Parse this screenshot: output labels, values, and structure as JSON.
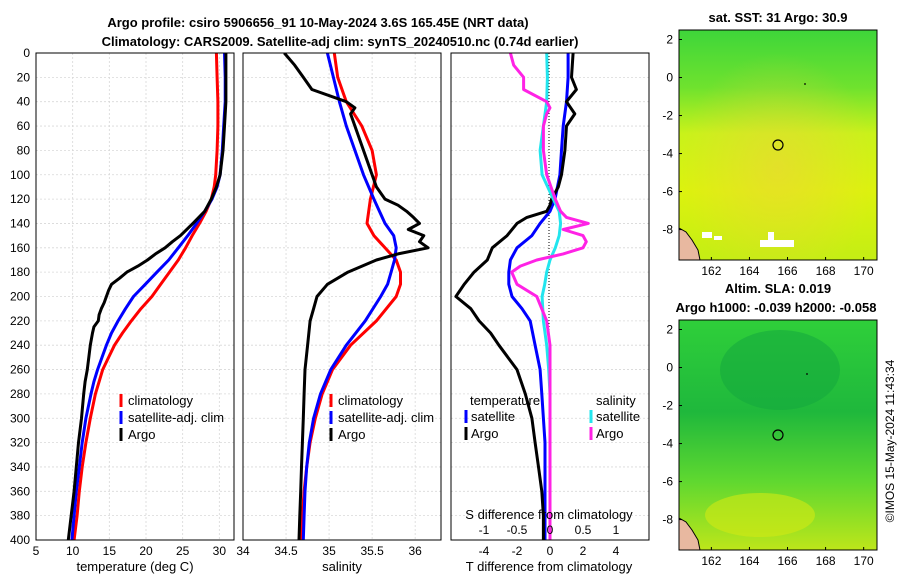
{
  "header": {
    "line1": "Argo profile: csiro 5906656_91 10-May-2024 3.6S 165.45E (NRT data)",
    "line2": "Climatology: CARS2009. Satellite-adj clim: synTS_20240510.nc (0.74d earlier)"
  },
  "depth_axis": {
    "ticks": [
      0,
      20,
      40,
      60,
      80,
      100,
      120,
      140,
      160,
      180,
      200,
      220,
      240,
      260,
      280,
      300,
      320,
      340,
      360,
      380,
      400
    ]
  },
  "colors": {
    "climatology": "#ff0000",
    "satellite": "#0000ff",
    "argo": "#000000",
    "sal_sat": "#22e5ee",
    "sal_argo": "#ff22e5"
  },
  "chart_data": [
    {
      "type": "line",
      "name": "temperature-profile",
      "xlabel": "temperature (deg C)",
      "ylabel": "depth",
      "xlim": [
        5,
        32
      ],
      "ylim": [
        0,
        400
      ],
      "xticks": [
        5,
        10,
        15,
        20,
        25,
        30
      ],
      "legend": [
        "climatology",
        "satellite-adj. clim",
        "Argo"
      ],
      "series": [
        {
          "name": "climatology",
          "depth": [
            0,
            20,
            40,
            60,
            80,
            100,
            110,
            120,
            130,
            140,
            150,
            160,
            170,
            180,
            190,
            200,
            210,
            220,
            230,
            240,
            250,
            260,
            270,
            280,
            300,
            320,
            340,
            360,
            380,
            400
          ],
          "values": [
            29.6,
            29.7,
            29.8,
            29.8,
            29.7,
            29.5,
            29.3,
            28.9,
            28.2,
            27.3,
            26.3,
            25.4,
            24.4,
            23.2,
            22.0,
            20.8,
            19.3,
            18.0,
            16.8,
            15.7,
            14.9,
            14.1,
            13.6,
            13.1,
            12.4,
            11.8,
            11.3,
            10.9,
            10.6,
            10.2
          ]
        },
        {
          "name": "satellite-adj. clim",
          "depth": [
            0,
            20,
            40,
            60,
            80,
            100,
            110,
            120,
            130,
            140,
            150,
            160,
            170,
            180,
            190,
            200,
            210,
            220,
            230,
            240,
            250,
            260,
            270,
            280,
            300,
            320,
            340,
            360,
            380,
            400
          ],
          "values": [
            30.7,
            30.8,
            30.8,
            30.6,
            30.4,
            30.1,
            29.7,
            29.0,
            28.0,
            26.9,
            25.7,
            24.4,
            23.1,
            21.5,
            19.9,
            18.3,
            17.2,
            16.2,
            15.3,
            14.6,
            14.0,
            13.4,
            12.9,
            12.5,
            11.8,
            11.3,
            10.9,
            10.5,
            10.2,
            9.9
          ]
        },
        {
          "name": "Argo",
          "depth": [
            0,
            20,
            40,
            60,
            80,
            100,
            110,
            120,
            130,
            140,
            150,
            155,
            160,
            165,
            170,
            175,
            180,
            185,
            190,
            195,
            200,
            205,
            210,
            215,
            220,
            225,
            230,
            240,
            250,
            260,
            270,
            280,
            300,
            320,
            340,
            360,
            380,
            400
          ],
          "values": [
            30.9,
            30.9,
            30.9,
            30.7,
            30.5,
            30.1,
            29.6,
            28.9,
            28.0,
            26.4,
            24.7,
            23.6,
            22.6,
            21.3,
            20.2,
            18.9,
            17.4,
            16.4,
            15.3,
            14.9,
            14.6,
            14.3,
            13.9,
            13.6,
            13.5,
            12.9,
            12.7,
            12.4,
            12.2,
            12.0,
            11.7,
            11.5,
            11.2,
            10.8,
            10.5,
            10.2,
            9.8,
            9.4
          ]
        }
      ]
    },
    {
      "type": "line",
      "name": "salinity-profile",
      "xlabel": "salinity",
      "ylabel": "depth",
      "xlim": [
        34,
        36.3
      ],
      "ylim": [
        0,
        400
      ],
      "xticks": [
        34,
        34.5,
        35,
        35.5,
        36
      ],
      "xtick_labels": [
        "34",
        "34.5",
        "35",
        "35.5",
        "36"
      ],
      "legend": [
        "climatology",
        "satellite-adj. clim",
        "Argo"
      ],
      "series": [
        {
          "name": "climatology",
          "depth": [
            0,
            20,
            40,
            60,
            80,
            100,
            120,
            140,
            150,
            160,
            170,
            180,
            190,
            200,
            220,
            240,
            260,
            280,
            300,
            320,
            340,
            360,
            380,
            400
          ],
          "values": [
            35.06,
            35.1,
            35.2,
            35.38,
            35.5,
            35.55,
            35.48,
            35.44,
            35.52,
            35.65,
            35.78,
            35.83,
            35.83,
            35.78,
            35.55,
            35.25,
            35.04,
            34.92,
            34.84,
            34.78,
            34.74,
            34.71,
            34.69,
            34.68
          ]
        },
        {
          "name": "satellite-adj. clim",
          "depth": [
            0,
            20,
            40,
            60,
            80,
            100,
            120,
            140,
            150,
            160,
            170,
            180,
            190,
            200,
            220,
            240,
            260,
            280,
            300,
            320,
            340,
            360,
            380,
            400
          ],
          "values": [
            34.98,
            35.05,
            35.12,
            35.2,
            35.3,
            35.4,
            35.52,
            35.65,
            35.75,
            35.78,
            35.76,
            35.72,
            35.68,
            35.6,
            35.42,
            35.2,
            35.02,
            34.9,
            34.82,
            34.77,
            34.74,
            34.72,
            34.71,
            34.7
          ]
        },
        {
          "name": "Argo",
          "depth": [
            0,
            10,
            20,
            30,
            40,
            45,
            50,
            60,
            80,
            100,
            110,
            120,
            125,
            130,
            135,
            140,
            145,
            150,
            155,
            160,
            165,
            170,
            180,
            190,
            200,
            210,
            220,
            240,
            260,
            280,
            300,
            320,
            340,
            360,
            380,
            400
          ],
          "values": [
            34.48,
            34.6,
            34.7,
            34.8,
            35.2,
            35.3,
            35.25,
            35.3,
            35.4,
            35.5,
            35.55,
            35.65,
            35.8,
            35.9,
            35.98,
            36.05,
            35.92,
            36.1,
            36.05,
            36.15,
            35.8,
            35.55,
            35.22,
            34.98,
            34.86,
            34.82,
            34.78,
            34.75,
            34.72,
            34.71,
            34.7,
            34.69,
            34.68,
            34.67,
            34.66,
            34.65
          ]
        }
      ]
    },
    {
      "type": "line",
      "name": "difference-from-climatology",
      "xlabel": "T difference from climatology",
      "x2label": "S difference from climatology",
      "ylabel": "depth",
      "xlim": [
        -6,
        6
      ],
      "ylim": [
        0,
        400
      ],
      "xticks": [
        -4,
        -2,
        0,
        2,
        4
      ],
      "x2lim": [
        -1.5,
        1.5
      ],
      "x2ticks": [
        -1,
        -0.5,
        0,
        0.5,
        1
      ],
      "x2tick_labels": [
        "-1",
        "-0.5",
        "0",
        "0.5",
        "1"
      ],
      "legend_temperature_title": "temperature",
      "legend_salinity_title": "salinity",
      "legend_temperature": [
        "satellite",
        "Argo"
      ],
      "legend_salinity": [
        "satellite",
        "Argo"
      ],
      "series": [
        {
          "name": "temperature satellite",
          "axis": "T",
          "depth": [
            0,
            20,
            40,
            60,
            80,
            100,
            120,
            130,
            140,
            150,
            160,
            170,
            180,
            190,
            200,
            210,
            220,
            240,
            260,
            280,
            300,
            320,
            340,
            360,
            380,
            400
          ],
          "values": [
            1.1,
            1.1,
            1.0,
            0.8,
            0.7,
            0.6,
            0.3,
            0.0,
            -0.6,
            -1.1,
            -2.0,
            -2.4,
            -2.5,
            -2.5,
            -2.3,
            -1.7,
            -1.2,
            -0.9,
            -0.6,
            -0.5,
            -0.4,
            -0.3,
            -0.3,
            -0.3,
            -0.3,
            -0.3
          ]
        },
        {
          "name": "temperature Argo",
          "axis": "T",
          "depth": [
            0,
            20,
            30,
            40,
            50,
            60,
            80,
            100,
            110,
            120,
            125,
            130,
            135,
            140,
            150,
            160,
            170,
            180,
            190,
            200,
            210,
            220,
            230,
            240,
            260,
            280,
            300,
            320,
            340,
            360,
            380,
            400
          ],
          "values": [
            1.4,
            1.3,
            1.6,
            1.0,
            1.5,
            1.0,
            0.9,
            0.7,
            0.5,
            0.1,
            0.0,
            -0.2,
            -1.4,
            -2.0,
            -2.6,
            -3.5,
            -3.8,
            -4.6,
            -5.2,
            -5.7,
            -4.8,
            -4.3,
            -3.6,
            -3.1,
            -2.0,
            -1.5,
            -1.1,
            -0.9,
            -0.7,
            -0.5,
            -0.4,
            -0.4
          ]
        },
        {
          "name": "salinity satellite",
          "axis": "S",
          "depth": [
            0,
            20,
            40,
            60,
            80,
            100,
            120,
            130,
            140,
            150,
            160,
            170,
            180,
            190,
            200,
            220,
            240,
            260,
            280,
            300,
            320,
            340,
            360,
            380,
            400
          ],
          "values": [
            -0.05,
            -0.04,
            -0.05,
            -0.1,
            -0.15,
            -0.12,
            0.05,
            0.14,
            0.16,
            0.14,
            0.08,
            0.0,
            -0.05,
            -0.08,
            -0.12,
            -0.1,
            -0.05,
            -0.02,
            0.0,
            0.0,
            0.0,
            0.0,
            0.0,
            0.0,
            0.0
          ]
        },
        {
          "name": "salinity Argo",
          "axis": "S",
          "depth": [
            0,
            10,
            20,
            30,
            40,
            45,
            50,
            60,
            80,
            100,
            120,
            130,
            135,
            140,
            145,
            150,
            155,
            160,
            165,
            170,
            175,
            180,
            190,
            200,
            220,
            240,
            260,
            280,
            300,
            340,
            380,
            400
          ],
          "values": [
            -0.6,
            -0.55,
            -0.4,
            -0.4,
            -0.05,
            0.0,
            -0.05,
            -0.1,
            -0.1,
            -0.05,
            0.08,
            0.16,
            0.25,
            0.58,
            0.2,
            0.5,
            0.55,
            0.5,
            0.2,
            -0.2,
            -0.45,
            -0.58,
            -0.5,
            -0.2,
            -0.05,
            0.0,
            0.0,
            0.0,
            0.0,
            0.0,
            0.0,
            0.0
          ]
        }
      ]
    },
    {
      "type": "heatmap",
      "name": "sst-map",
      "title": "sat. SST: 31 Argo: 30.9",
      "xlim": [
        160.3,
        170.7
      ],
      "ylim": [
        -9.6,
        2.5
      ],
      "xticks": [
        162,
        164,
        166,
        168,
        170
      ],
      "yticks": [
        2,
        0,
        -2,
        -4,
        -6,
        -8
      ],
      "argo_position": [
        165.45,
        -3.6
      ]
    },
    {
      "type": "heatmap",
      "name": "sla-map",
      "title": "Altim. SLA: 0.019",
      "subtitle": "Argo h1000: -0.039 h2000: -0.058",
      "xlim": [
        160.3,
        170.7
      ],
      "ylim": [
        -9.6,
        2.5
      ],
      "xticks": [
        162,
        164,
        166,
        168,
        170
      ],
      "yticks": [
        2,
        0,
        -2,
        -4,
        -6,
        -8
      ],
      "argo_position": [
        165.45,
        -3.6
      ]
    }
  ],
  "credit": "©IMOS 15-May-2024 11:43:34"
}
